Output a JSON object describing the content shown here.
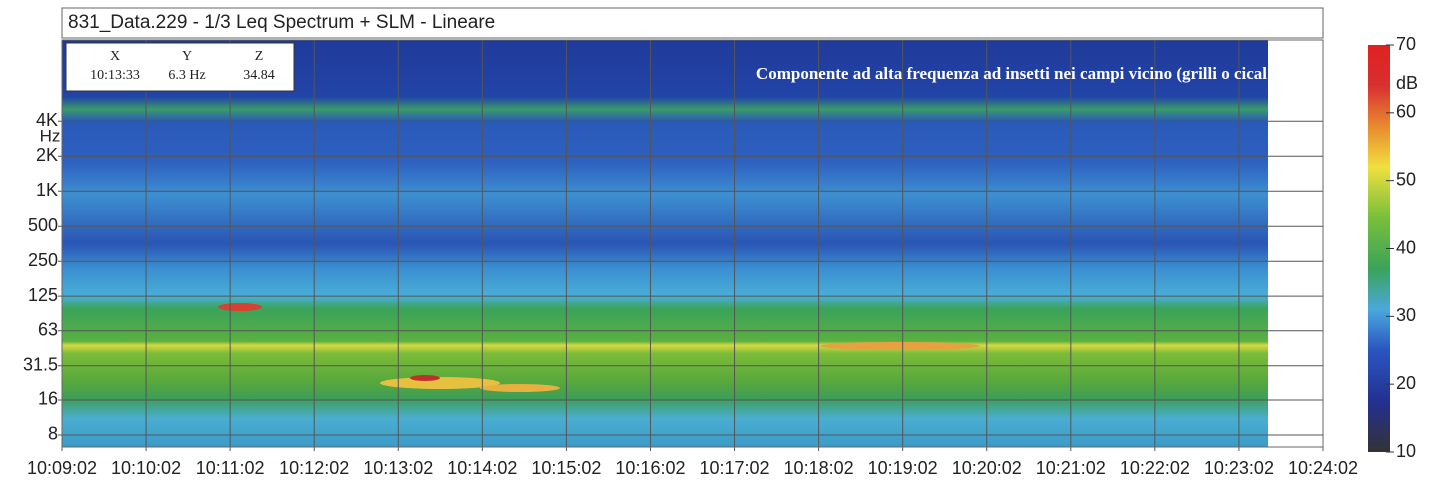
{
  "chart_data": {
    "type": "spectrogram",
    "title": "831_Data.229 - 1/3 Leq Spectrum + SLM - Lineare",
    "annotation": "Componente ad alta frequenza ad insetti nei campi vicino (grilli o cical",
    "y_unit": "Hz",
    "ylim": [
      6.3,
      20000
    ],
    "log_y": true,
    "yticks": [
      {
        "value": 4000,
        "label": "4K"
      },
      {
        "value": 2000,
        "label": "2K"
      },
      {
        "value": 1000,
        "label": "1K"
      },
      500,
      250,
      125,
      63,
      31.5,
      16,
      8
    ],
    "xticks": [
      "10:09:02",
      "10:10:02",
      "10:11:02",
      "10:12:02",
      "10:13:02",
      "10:14:02",
      "10:15:02",
      "10:16:02",
      "10:17:02",
      "10:18:02",
      "10:19:02",
      "10:20:02",
      "10:21:02",
      "10:22:02",
      "10:23:02",
      "10:24:02"
    ],
    "cursor": {
      "headers": [
        "X",
        "Y",
        "Z"
      ],
      "values": [
        "10:13:33",
        "6.3 Hz",
        "34.84"
      ]
    },
    "colorbar": {
      "label": "dB",
      "lim": [
        10,
        70
      ],
      "ticks": [
        70,
        60,
        50,
        40,
        30,
        20,
        10
      ]
    },
    "grid": true
  }
}
